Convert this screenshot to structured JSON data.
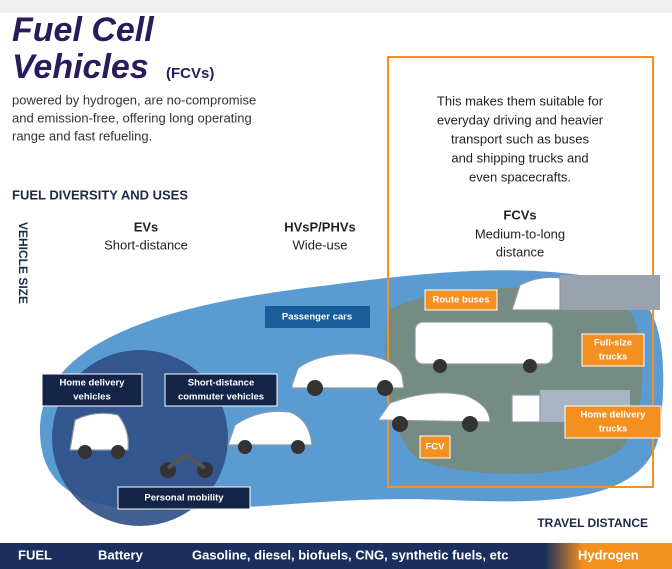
{
  "header": {
    "title_line1": "Fuel Cell",
    "title_line2": "Vehicles",
    "title_suffix": "(FCVs)",
    "description": [
      "powered by hydrogen, are no-compromise",
      "and emission-free, offering long operating",
      "range and fast refueling."
    ]
  },
  "callout": {
    "lines": [
      "This makes them suitable for",
      "everyday driving and heavier",
      "transport such as buses",
      "and shipping trucks and",
      "even spacecrafts."
    ]
  },
  "section_title": "FUEL DIVERSITY AND USES",
  "axis": {
    "y": "VEHICLE SIZE",
    "x": "TRAVEL DISTANCE"
  },
  "groups": [
    {
      "name": "EVs",
      "lines": [
        "Short-distance"
      ]
    },
    {
      "name": "HVsP/PHVs",
      "lines": [
        "Wide-use"
      ]
    },
    {
      "name": "FCVs",
      "lines": [
        "Medium-to-long",
        "distance"
      ]
    }
  ],
  "vehicle_labels": [
    {
      "lines": [
        "Passenger cars"
      ]
    },
    {
      "lines": [
        "Home delivery",
        "vehicles"
      ]
    },
    {
      "lines": [
        "Short-distance",
        "commuter vehicles"
      ]
    },
    {
      "lines": [
        "Personal mobility"
      ]
    },
    {
      "lines": [
        "Route buses"
      ]
    },
    {
      "lines": [
        "Full-size",
        "trucks"
      ]
    },
    {
      "lines": [
        "Home delivery",
        "trucks"
      ]
    },
    {
      "lines": [
        "FCV"
      ]
    }
  ],
  "fuel_bar": {
    "label": "FUEL",
    "items": [
      "Battery",
      "Gasoline, diesel, biofuels, CNG, synthetic fuels, etc",
      "Hydrogen"
    ]
  }
}
